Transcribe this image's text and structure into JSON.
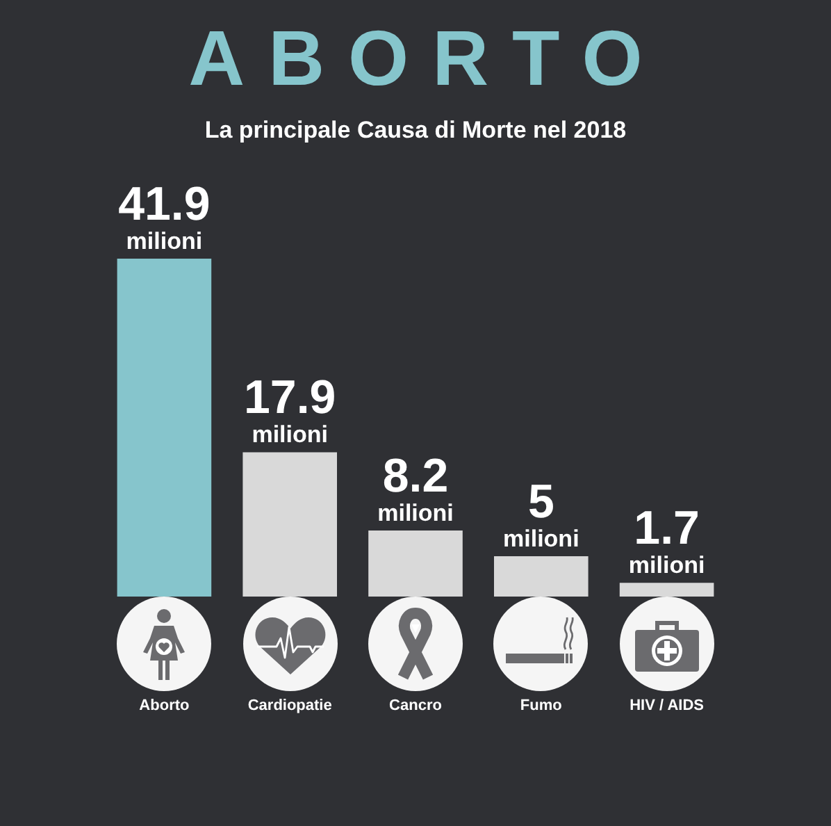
{
  "chart_data": {
    "type": "bar",
    "title": "ABORTO",
    "subtitle": "La principale Causa di Morte nel 2018",
    "categories": [
      "Aborto",
      "Cardiopatie",
      "Cancro",
      "Fumo",
      "HIV / AIDS"
    ],
    "values": [
      41.9,
      17.9,
      8.2,
      5,
      1.7
    ],
    "colors": [
      "#86c5cc",
      "#d9d9d9",
      "#d9d9d9",
      "#d9d9d9",
      "#d9d9d9"
    ],
    "value_labels": [
      "41.9 milioni",
      "17.9 milioni",
      "8.2 milioni",
      "5 milioni",
      "1.7 milioni"
    ]
  }
}
